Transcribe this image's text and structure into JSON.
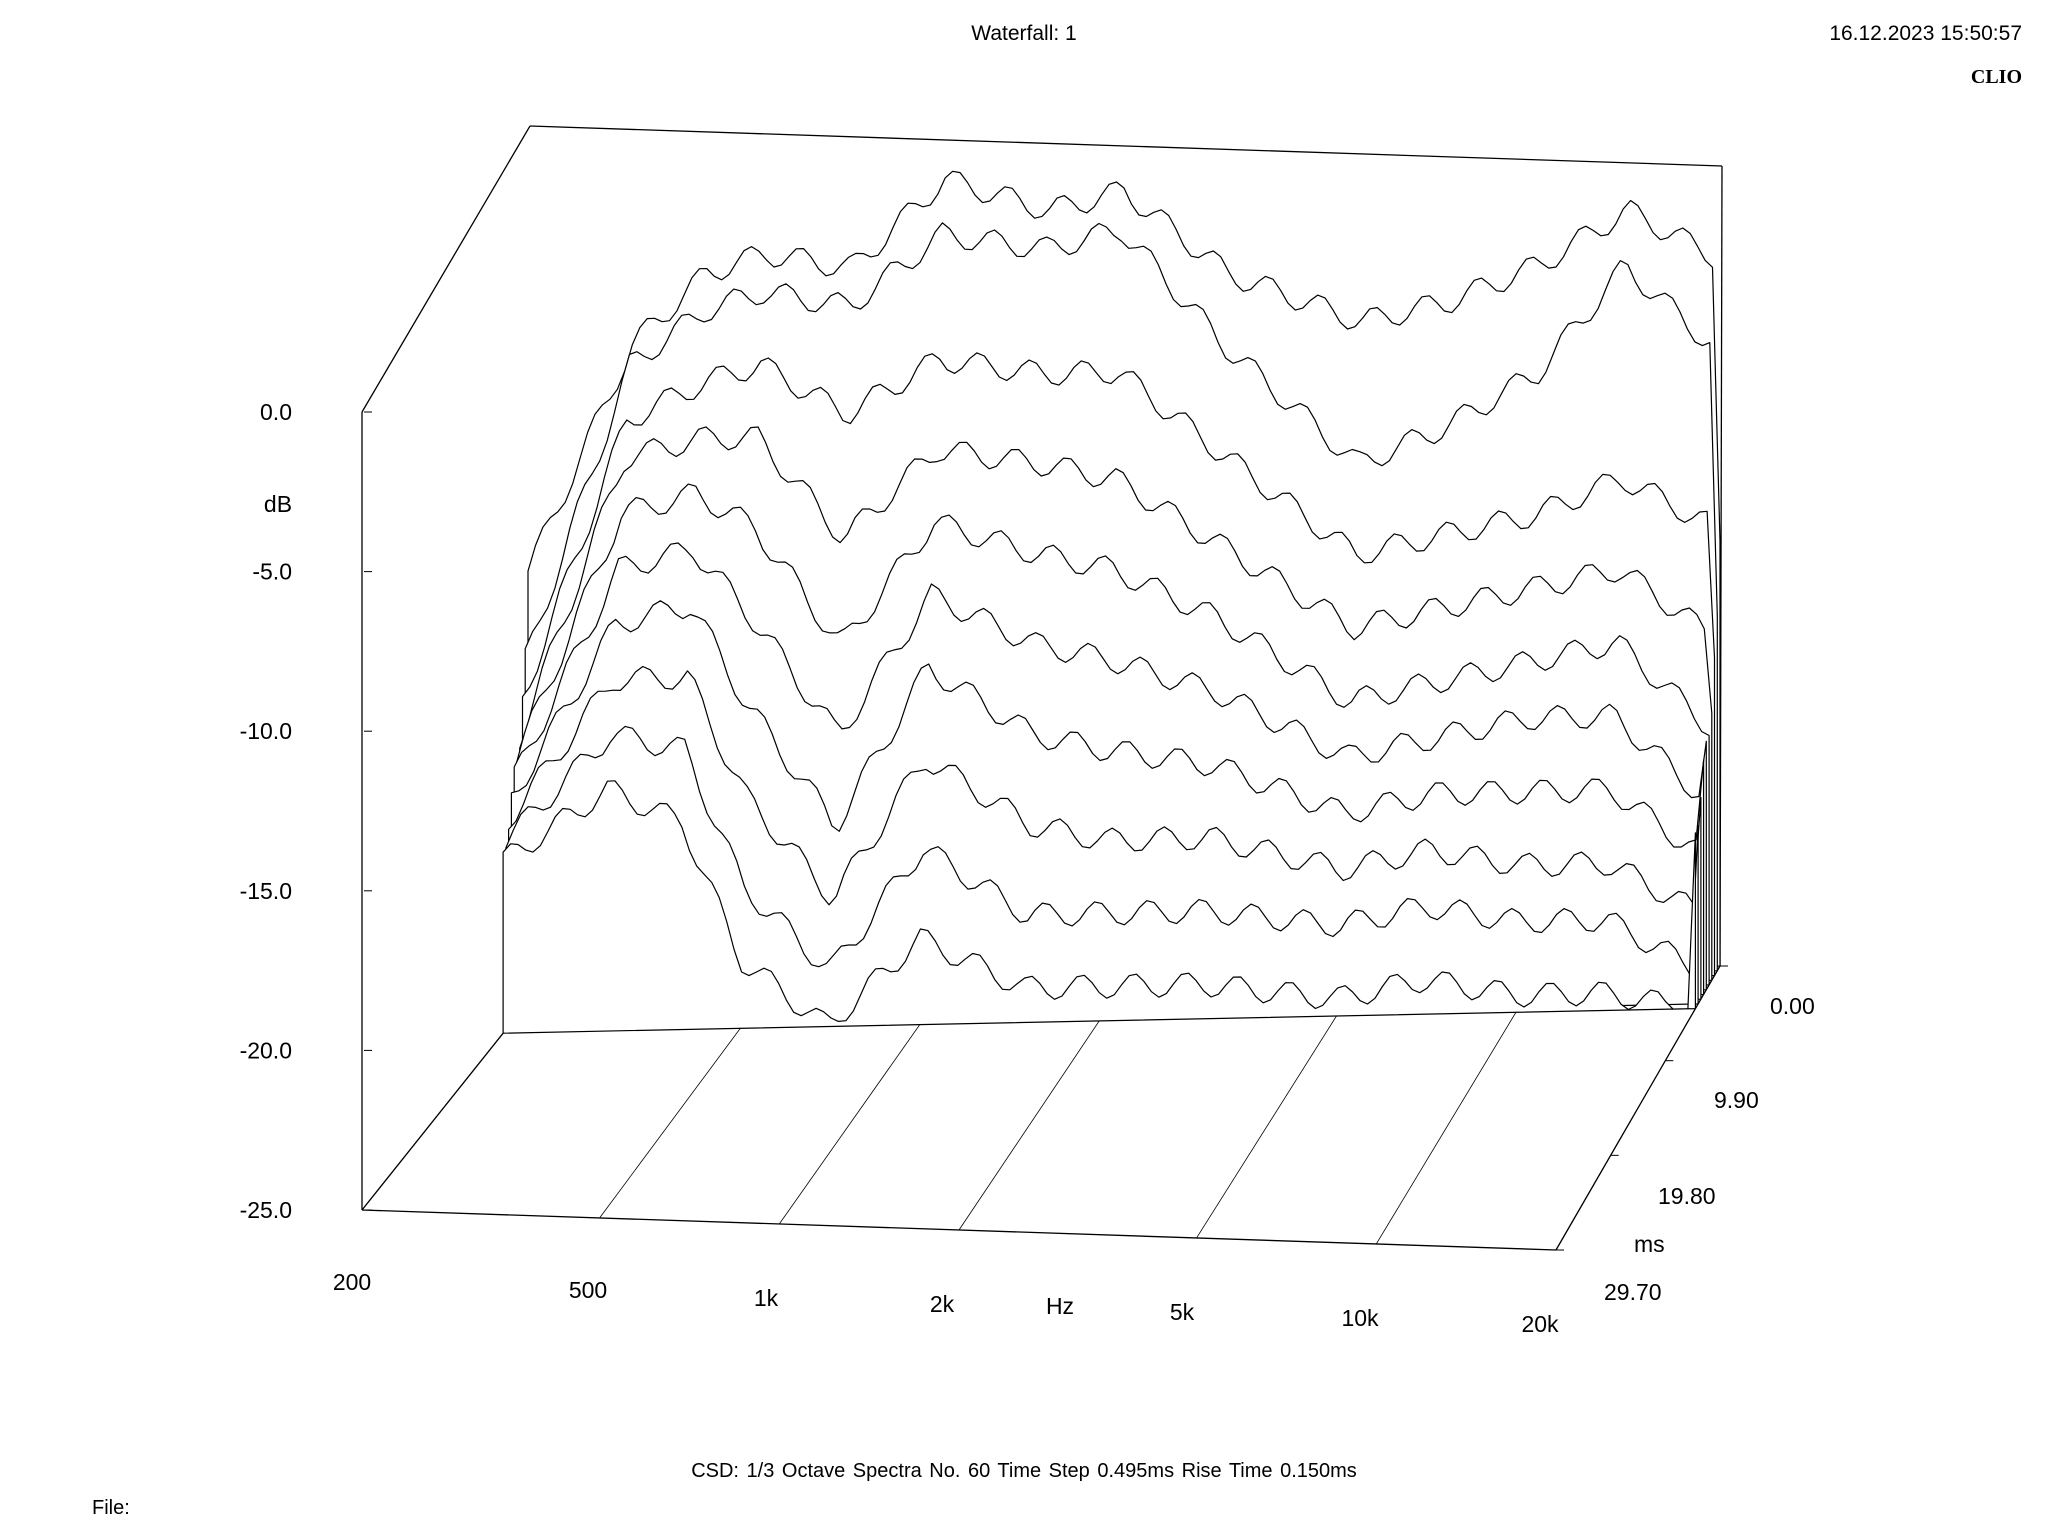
{
  "header": {
    "title": "Waterfall: 1",
    "timestamp": "16.12.2023 15:50:57",
    "brand": "CLIO"
  },
  "footer": {
    "info": "CSD:   1/3 Octave   Spectra No. 60   Time Step 0.495ms   Rise Time 0.150ms",
    "file_label": "File:"
  },
  "chart_data": {
    "type": "waterfall",
    "title": "Waterfall: 1",
    "xlabel": "Hz",
    "ylabel": "dB",
    "zlabel": "ms",
    "x_scale": "log",
    "xlim": [
      200,
      20000
    ],
    "ylim": [
      -25,
      0
    ],
    "zlim": [
      0,
      29.7
    ],
    "x_ticks": [
      {
        "value": 200,
        "label": "200"
      },
      {
        "value": 500,
        "label": "500"
      },
      {
        "value": 1000,
        "label": "1k"
      },
      {
        "value": 2000,
        "label": "2k"
      },
      {
        "value": 5000,
        "label": "5k"
      },
      {
        "value": 10000,
        "label": "10k"
      },
      {
        "value": 20000,
        "label": "20k"
      }
    ],
    "y_ticks": [
      {
        "value": 0,
        "label": "0.0"
      },
      {
        "value": -5,
        "label": "-5.0"
      },
      {
        "value": -10,
        "label": "-10.0"
      },
      {
        "value": -15,
        "label": "-15.0"
      },
      {
        "value": -20,
        "label": "-20.0"
      },
      {
        "value": -25,
        "label": "-25.0"
      }
    ],
    "z_ticks": [
      {
        "value": 0,
        "label": "0.00"
      },
      {
        "value": 9.9,
        "label": "9.90"
      },
      {
        "value": 19.8,
        "label": "19.80"
      },
      {
        "value": 29.7,
        "label": "29.70"
      }
    ],
    "spectra_count": 60,
    "time_step_ms": 0.495,
    "rise_time_ms": 0.15,
    "smoothing": "1/3 Octave",
    "slices_time_ms": [
      0,
      0.495,
      0.99,
      1.485,
      1.98,
      2.475,
      2.97,
      3.465,
      3.96,
      4.455
    ],
    "slices": [
      {
        "time_ms": 0.0,
        "freq": [
          200,
          300,
          400,
          500,
          700,
          1000,
          1500,
          2000,
          3000,
          5000,
          7000,
          10000,
          14000,
          20000
        ],
        "db": [
          -12.5,
          -6.0,
          -4.0,
          -3.5,
          -4.0,
          -1.5,
          -2.5,
          -2.0,
          -4.5,
          -6.0,
          -5.5,
          -4.5,
          -3.0,
          -4.5
        ]
      },
      {
        "time_ms": 0.495,
        "freq": [
          200,
          300,
          400,
          500,
          700,
          1000,
          1500,
          2000,
          3000,
          5000,
          7000,
          10000,
          14000,
          20000
        ],
        "db": [
          -15.0,
          -6.5,
          -5.0,
          -4.5,
          -5.0,
          -3.0,
          -3.5,
          -3.0,
          -6.5,
          -10.0,
          -9.0,
          -7.5,
          -4.5,
          -7.0
        ]
      },
      {
        "time_ms": 0.99,
        "freq": [
          200,
          300,
          400,
          500,
          700,
          1000,
          1500,
          2000,
          3000,
          5000,
          7000,
          10000,
          14000,
          20000
        ],
        "db": [
          -16.0,
          -8.0,
          -7.0,
          -6.5,
          -8.0,
          -6.5,
          -7.0,
          -7.0,
          -9.5,
          -12.5,
          -12.0,
          -11.5,
          -10.5,
          -12.0
        ]
      },
      {
        "time_ms": 1.485,
        "freq": [
          200,
          300,
          400,
          500,
          700,
          1000,
          1500,
          2000,
          3000,
          5000,
          7000,
          10000,
          14000,
          20000
        ],
        "db": [
          -17.0,
          -9.0,
          -8.5,
          -8.5,
          -11.5,
          -9.0,
          -9.5,
          -10.0,
          -12.0,
          -14.5,
          -14.0,
          -13.5,
          -13.0,
          -15.0
        ]
      },
      {
        "time_ms": 1.98,
        "freq": [
          200,
          300,
          400,
          500,
          700,
          1000,
          1500,
          2000,
          3000,
          5000,
          7000,
          10000,
          14000,
          20000
        ],
        "db": [
          -17.5,
          -10.5,
          -10.0,
          -11.0,
          -14.5,
          -11.0,
          -12.0,
          -12.5,
          -14.0,
          -16.5,
          -16.0,
          -15.5,
          -15.0,
          -17.5
        ]
      },
      {
        "time_ms": 2.475,
        "freq": [
          200,
          300,
          400,
          500,
          700,
          1000,
          1500,
          2000,
          3000,
          5000,
          7000,
          10000,
          14000,
          20000
        ],
        "db": [
          -18.0,
          -12.0,
          -11.5,
          -13.5,
          -17.0,
          -13.0,
          -14.5,
          -15.0,
          -16.0,
          -18.0,
          -17.5,
          -17.0,
          -17.0,
          -19.5
        ]
      },
      {
        "time_ms": 2.97,
        "freq": [
          200,
          300,
          400,
          500,
          700,
          1000,
          1500,
          2000,
          3000,
          5000,
          7000,
          10000,
          14000,
          20000
        ],
        "db": [
          -18.5,
          -13.5,
          -13.0,
          -16.0,
          -19.5,
          -15.0,
          -17.0,
          -17.5,
          -18.0,
          -19.5,
          -19.0,
          -19.0,
          -19.0,
          -21.0
        ]
      },
      {
        "time_ms": 3.465,
        "freq": [
          200,
          300,
          400,
          500,
          700,
          1000,
          1500,
          2000,
          3000,
          5000,
          7000,
          10000,
          14000,
          20000
        ],
        "db": [
          -19.0,
          -15.0,
          -15.0,
          -18.5,
          -21.5,
          -17.5,
          -19.5,
          -20.0,
          -20.0,
          -21.0,
          -20.5,
          -21.0,
          -21.0,
          -22.5
        ]
      },
      {
        "time_ms": 3.96,
        "freq": [
          200,
          300,
          400,
          500,
          700,
          1000,
          1500,
          2000,
          3000,
          5000,
          7000,
          10000,
          14000,
          20000
        ],
        "db": [
          -19.5,
          -16.5,
          -17.0,
          -21.0,
          -23.5,
          -20.0,
          -22.0,
          -22.0,
          -22.0,
          -22.5,
          -22.0,
          -22.5,
          -22.5,
          -24.0
        ]
      },
      {
        "time_ms": 4.455,
        "freq": [
          200,
          300,
          400,
          500,
          700,
          1000,
          1500,
          2000,
          3000,
          5000,
          7000,
          10000,
          14000,
          20000
        ],
        "db": [
          -20.0,
          -18.0,
          -19.0,
          -23.0,
          -25.0,
          -22.5,
          -24.0,
          -24.0,
          -24.0,
          -24.5,
          -24.0,
          -24.5,
          -24.5,
          -25.0
        ]
      }
    ]
  }
}
